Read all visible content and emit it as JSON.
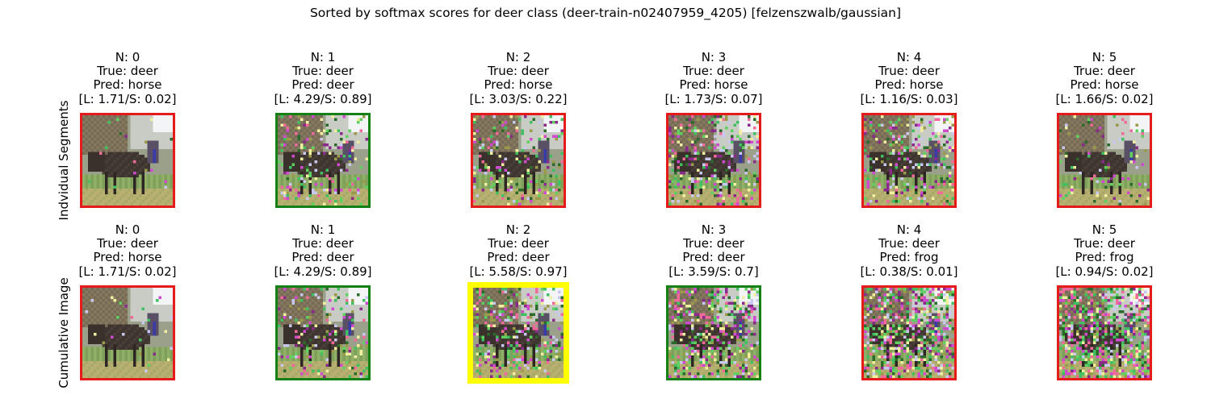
{
  "suptitle": "Sorted by softmax scores for deer class (deer-train-n02407959_4205) [felzenszwalb/gaussian]",
  "colors": {
    "wrong": "#e51b1b",
    "correct": "#158015",
    "best": "#ffff00"
  },
  "rows": [
    {
      "label": "Indvidual Segments",
      "panels": [
        {
          "n": "N: 0",
          "true_label": "True: deer",
          "pred": "Pred: horse",
          "scores": "[L: 1.71/S: 0.02]",
          "status": "wrong"
        },
        {
          "n": "N: 1",
          "true_label": "True: deer",
          "pred": "Pred: deer",
          "scores": "[L: 4.29/S: 0.89]",
          "status": "correct"
        },
        {
          "n": "N: 2",
          "true_label": "True: deer",
          "pred": "Pred: horse",
          "scores": "[L: 3.03/S: 0.22]",
          "status": "wrong"
        },
        {
          "n": "N: 3",
          "true_label": "True: deer",
          "pred": "Pred: horse",
          "scores": "[L: 1.73/S: 0.07]",
          "status": "wrong"
        },
        {
          "n": "N: 4",
          "true_label": "True: deer",
          "pred": "Pred: horse",
          "scores": "[L: 1.16/S: 0.03]",
          "status": "wrong"
        },
        {
          "n": "N: 5",
          "true_label": "True: deer",
          "pred": "Pred: horse",
          "scores": "[L: 1.66/S: 0.02]",
          "status": "wrong"
        }
      ]
    },
    {
      "label": "Cumulative Image",
      "panels": [
        {
          "n": "N: 0",
          "true_label": "True: deer",
          "pred": "Pred: horse",
          "scores": "[L: 1.71/S: 0.02]",
          "status": "wrong"
        },
        {
          "n": "N: 1",
          "true_label": "True: deer",
          "pred": "Pred: deer",
          "scores": "[L: 4.29/S: 0.89]",
          "status": "correct"
        },
        {
          "n": "N: 2",
          "true_label": "True: deer",
          "pred": "Pred: deer",
          "scores": "[L: 5.58/S: 0.97]",
          "status": "best"
        },
        {
          "n": "N: 3",
          "true_label": "True: deer",
          "pred": "Pred: deer",
          "scores": "[L: 3.59/S: 0.7]",
          "status": "correct"
        },
        {
          "n": "N: 4",
          "true_label": "True: deer",
          "pred": "Pred: frog",
          "scores": "[L: 0.38/S: 0.01]",
          "status": "wrong"
        },
        {
          "n": "N: 5",
          "true_label": "True: deer",
          "pred": "Pred: frog",
          "scores": "[L: 0.94/S: 0.02]",
          "status": "wrong"
        }
      ]
    }
  ]
}
